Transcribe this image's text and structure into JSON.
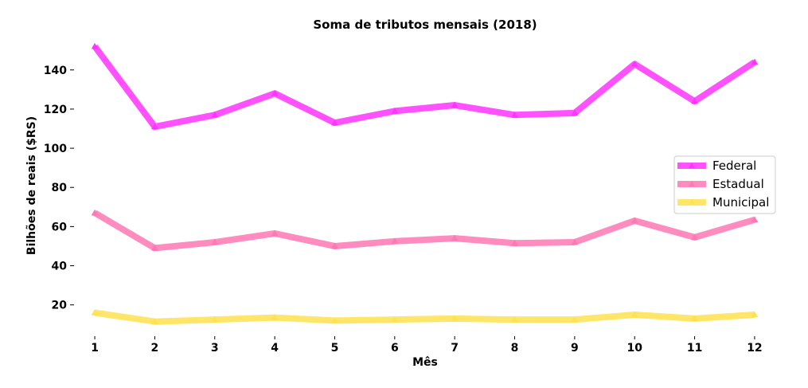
{
  "chart_data": {
    "type": "line",
    "title": "Soma de tributos mensais (2018)",
    "xlabel": "Mês",
    "ylabel": "Bilhões de reais ($RS)",
    "x": [
      1,
      2,
      3,
      4,
      5,
      6,
      7,
      8,
      9,
      10,
      11,
      12
    ],
    "xticks": [
      "1",
      "2",
      "3",
      "4",
      "5",
      "6",
      "7",
      "8",
      "9",
      "10",
      "11",
      "12"
    ],
    "yticks": [
      20,
      40,
      60,
      80,
      100,
      120,
      140
    ],
    "yticklabels": [
      "20",
      "40",
      "60",
      "80",
      "100",
      "120",
      "140"
    ],
    "xlim": [
      0.8,
      12.2
    ],
    "ylim": [
      4,
      157
    ],
    "grid": false,
    "legend_position": "right",
    "marker": "triangle",
    "series": [
      {
        "name": "Federal",
        "color": "#ff33ff",
        "values": [
          152,
          111,
          117,
          128,
          113,
          119,
          122,
          117,
          118,
          143,
          124,
          144
        ]
      },
      {
        "name": "Estadual",
        "color": "#ff77b4",
        "values": [
          67,
          49,
          52,
          56.5,
          50,
          52.5,
          54,
          51.5,
          52,
          63,
          54.5,
          63.5
        ]
      },
      {
        "name": "Municipal",
        "color": "#ffe24d",
        "values": [
          16,
          11.5,
          12.5,
          13.5,
          12,
          12.5,
          13,
          12.5,
          12.5,
          15,
          13,
          15
        ]
      }
    ]
  }
}
